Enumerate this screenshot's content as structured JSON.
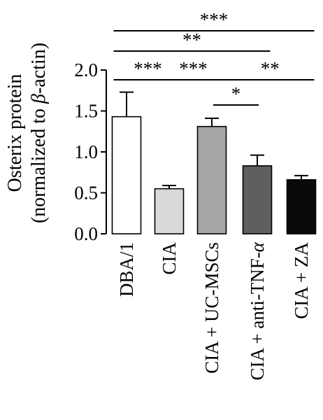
{
  "chart_data": {
    "type": "bar",
    "ylabel_line1": "Osterix protein",
    "ylabel_line2_prefix": "(normalized to ",
    "ylabel_line2_beta": "β",
    "ylabel_line2_suffix": "-actin)",
    "ylim": [
      0,
      2.0
    ],
    "yticks": [
      "0.0",
      "0.5",
      "1.0",
      "1.5",
      "2.0"
    ],
    "ytick_values": [
      0,
      0.5,
      1.0,
      1.5,
      2.0
    ],
    "categories": [
      {
        "text": "DBA/1"
      },
      {
        "text": "CIA"
      },
      {
        "text": "CIA + UC-MSCs"
      },
      {
        "text": "CIA + anti-TNF-",
        "italic": "α"
      },
      {
        "text": "CIA + ZA"
      }
    ],
    "values": [
      1.43,
      0.55,
      1.31,
      0.83,
      0.66
    ],
    "errors": [
      0.3,
      0.04,
      0.1,
      0.13,
      0.05
    ],
    "bar_colors": [
      "#ffffff",
      "#d9d9d9",
      "#a6a6a6",
      "#5f5f5f",
      "#0a0a0a"
    ],
    "significance": [
      {
        "from": 0,
        "to": 4,
        "label": "***"
      },
      {
        "from": 0,
        "to": 3,
        "label": "**"
      },
      {
        "from": 0,
        "to": 1,
        "label": "***"
      },
      {
        "from": 1,
        "to": 2,
        "label": "***"
      },
      {
        "from": 2,
        "to": 4,
        "label": "**"
      },
      {
        "from": 2,
        "to": 3,
        "label": "*"
      }
    ]
  }
}
